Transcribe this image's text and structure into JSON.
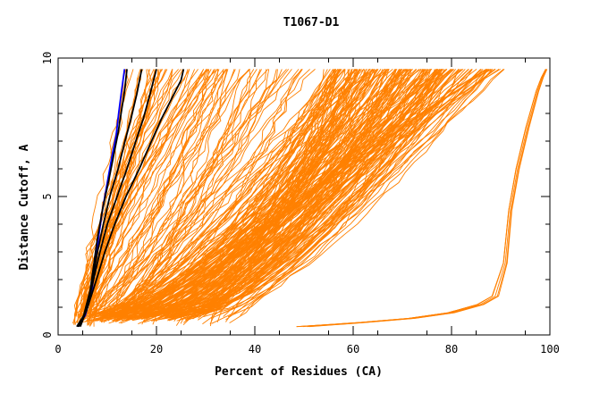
{
  "chart_data": {
    "type": "line",
    "title": "T1067-D1",
    "xlabel": "Percent of Residues (CA)",
    "ylabel": "Distance Cutoff, A",
    "xlim": [
      0,
      100
    ],
    "ylim": [
      0,
      10
    ],
    "x_ticks": [
      "0",
      "20",
      "40",
      "60",
      "80",
      "100"
    ],
    "y_ticks": [
      "0",
      "5",
      "10"
    ],
    "grid": false,
    "legend": "none",
    "colors": {
      "orange": "#ff8000",
      "black": "#000000",
      "blue": "#0000ff"
    },
    "highlighted_series": [
      {
        "color": "#0000ff",
        "points": [
          [
            4.0,
            0.3
          ],
          [
            5.5,
            0.7
          ],
          [
            6.8,
            1.5
          ],
          [
            7.5,
            2.5
          ],
          [
            8.2,
            3.5
          ],
          [
            9.0,
            4.5
          ],
          [
            10.0,
            5.5
          ],
          [
            11.0,
            6.5
          ],
          [
            11.8,
            7.2
          ],
          [
            12.3,
            8.0
          ],
          [
            12.9,
            8.8
          ],
          [
            13.5,
            9.6
          ]
        ]
      },
      {
        "color": "#000000",
        "points": [
          [
            3.8,
            0.3
          ],
          [
            5.2,
            0.7
          ],
          [
            6.5,
            1.6
          ],
          [
            7.3,
            2.6
          ],
          [
            8.0,
            3.5
          ],
          [
            9.0,
            4.5
          ],
          [
            10.2,
            5.5
          ],
          [
            11.3,
            6.5
          ],
          [
            12.2,
            7.3
          ],
          [
            12.8,
            8.0
          ],
          [
            13.5,
            8.8
          ],
          [
            14.0,
            9.6
          ]
        ]
      },
      {
        "color": "#000000",
        "points": [
          [
            4.0,
            0.3
          ],
          [
            5.5,
            0.8
          ],
          [
            6.8,
            1.8
          ],
          [
            8.0,
            3.0
          ],
          [
            9.2,
            4.0
          ],
          [
            10.5,
            5.0
          ],
          [
            12.2,
            6.0
          ],
          [
            13.6,
            7.0
          ],
          [
            14.8,
            7.8
          ],
          [
            16.0,
            8.7
          ],
          [
            17.0,
            9.6
          ]
        ]
      },
      {
        "color": "#000000",
        "points": [
          [
            4.2,
            0.3
          ],
          [
            5.8,
            0.9
          ],
          [
            7.2,
            2.0
          ],
          [
            8.5,
            3.0
          ],
          [
            10.0,
            4.0
          ],
          [
            12.0,
            5.0
          ],
          [
            14.0,
            6.0
          ],
          [
            15.8,
            7.0
          ],
          [
            17.3,
            7.8
          ],
          [
            18.7,
            8.7
          ],
          [
            20.0,
            9.6
          ]
        ]
      },
      {
        "color": "#000000",
        "points": [
          [
            4.5,
            0.3
          ],
          [
            6.0,
            1.0
          ],
          [
            7.8,
            2.0
          ],
          [
            9.5,
            3.0
          ],
          [
            11.5,
            4.0
          ],
          [
            13.8,
            5.0
          ],
          [
            16.5,
            6.0
          ],
          [
            19.0,
            7.0
          ],
          [
            21.0,
            7.8
          ],
          [
            23.0,
            8.5
          ],
          [
            25.0,
            9.2
          ],
          [
            25.5,
            9.6
          ]
        ]
      }
    ]
  }
}
